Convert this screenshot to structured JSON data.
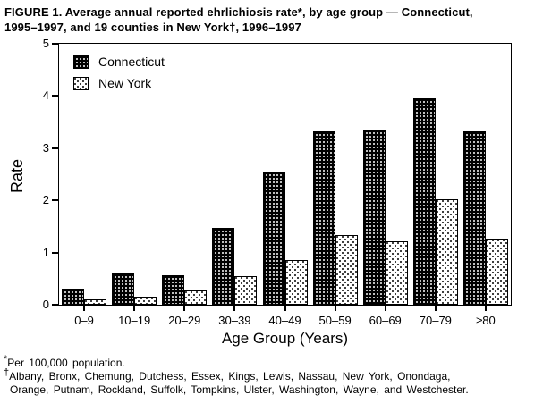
{
  "figure": {
    "title": "FIGURE 1. Average annual reported ehrlichiosis rate*, by age group — Connecticut,\n1995–1997, and 19 counties in New York†, 1996–1997"
  },
  "chart_data": {
    "type": "bar",
    "categories": [
      "0–9",
      "10–19",
      "20–29",
      "30–39",
      "40–49",
      "50–59",
      "60–69",
      "70–79",
      "≥80"
    ],
    "series": [
      {
        "name": "Connecticut",
        "values": [
          0.3,
          0.6,
          0.57,
          1.48,
          2.55,
          3.32,
          3.36,
          3.95,
          3.32
        ]
      },
      {
        "name": "New York",
        "values": [
          0.1,
          0.15,
          0.27,
          0.55,
          0.85,
          1.34,
          1.21,
          2.02,
          1.26
        ]
      }
    ],
    "title": "Average annual reported ehrlichiosis rate by age group",
    "xlabel": "Age Group (Years)",
    "ylabel": "Rate",
    "ylim": [
      0,
      5
    ],
    "yticks": [
      0,
      1,
      2,
      3,
      4,
      5
    ],
    "grid": false,
    "legend_position": "top-left-inside",
    "series_styles": {
      "connecticut": {
        "fill": "#000000",
        "pattern": "white-dots-on-black"
      },
      "new_york": {
        "fill": "#ffffff",
        "pattern": "black-dots-on-white"
      }
    }
  },
  "footnotes": [
    {
      "marker": "*",
      "text": "Per 100,000 population."
    },
    {
      "marker": "†",
      "text": "Albany, Bronx, Chemung, Dutchess, Essex, Kings, Lewis, Nassau, New York, Onondaga,\nOrange, Putnam, Rockland, Suffolk, Tompkins, Ulster, Washington, Wayne, and Westchester."
    }
  ]
}
